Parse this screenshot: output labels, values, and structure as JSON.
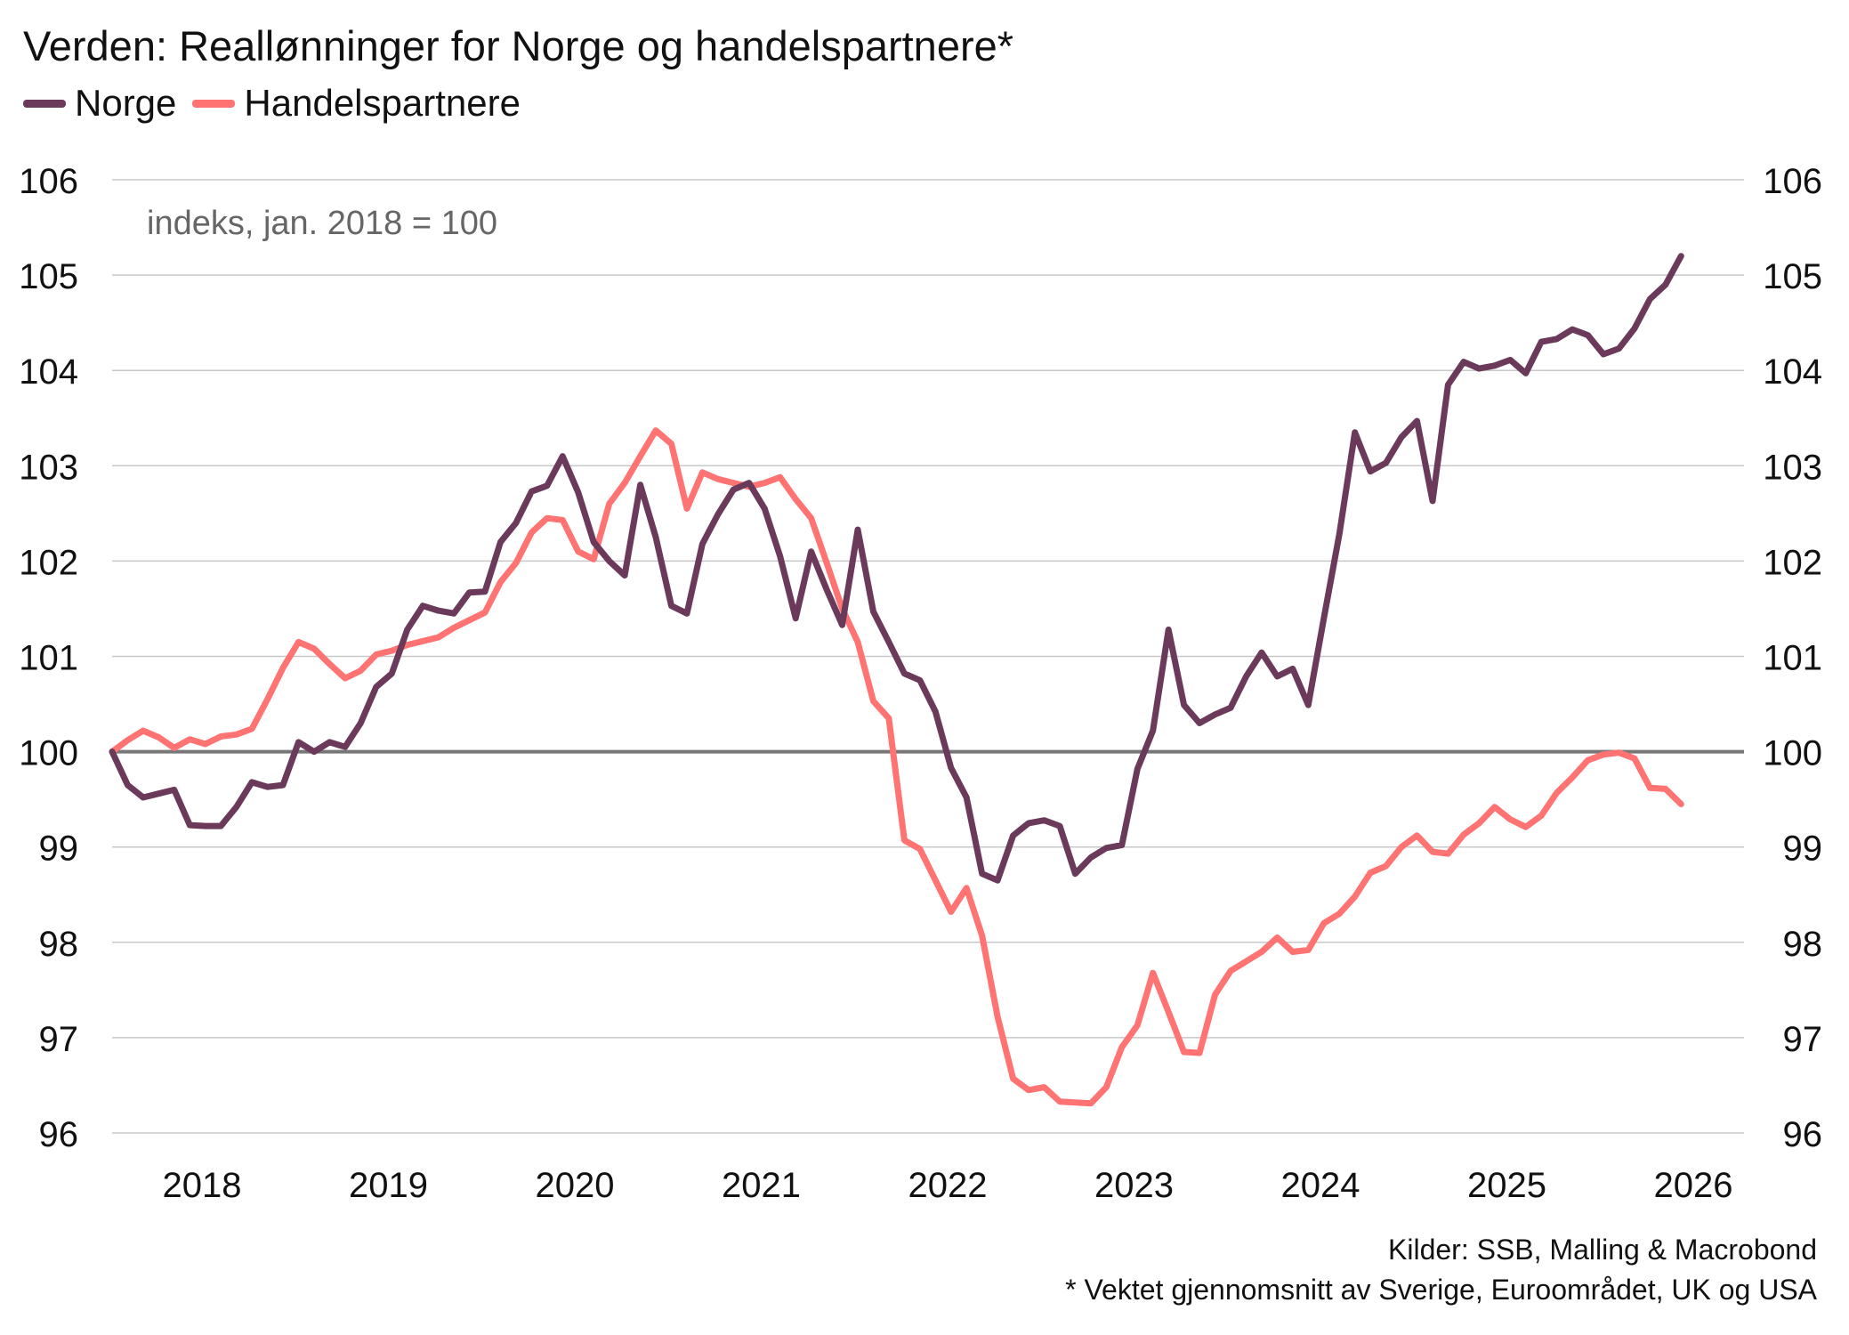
{
  "title": "Verden: Reallønninger for Norge og handelspartnere*",
  "legend": [
    {
      "label": "Norge",
      "color": "#6b3a5a"
    },
    {
      "label": "Handelspartnere",
      "color": "#ff7373"
    }
  ],
  "annotation": "indeks, jan. 2018 = 100",
  "sources": [
    "Kilder: SSB, Malling & Macrobond",
    "* Vektet gjennomsnitt av Sverige, Euroområdet, UK og USA"
  ],
  "chart_data": {
    "type": "line",
    "title": "Verden: Reallønninger for Norge og handelspartnere*",
    "subtitle": "indeks, jan. 2018 = 100",
    "xlabel": "",
    "ylabel": "",
    "x_start": "2018-01",
    "x_ticks": [
      "2018",
      "2019",
      "2020",
      "2021",
      "2022",
      "2023",
      "2024",
      "2025",
      "2026"
    ],
    "ylim": [
      96,
      106
    ],
    "y_ticks": [
      96,
      97,
      98,
      99,
      100,
      101,
      102,
      103,
      104,
      105,
      106
    ],
    "reference_line": 100,
    "grid": true,
    "axes": "left and right",
    "legend_position": "top-left",
    "series": [
      {
        "name": "Norge",
        "color": "#6b3a5a",
        "values": [
          100.0,
          99.65,
          99.52,
          99.56,
          99.6,
          99.23,
          99.22,
          99.22,
          99.42,
          99.68,
          99.63,
          99.65,
          100.1,
          100.0,
          100.1,
          100.05,
          100.3,
          100.68,
          100.82,
          101.28,
          101.53,
          101.48,
          101.45,
          101.67,
          101.68,
          102.2,
          102.4,
          102.73,
          102.79,
          103.1,
          102.72,
          102.2,
          102.0,
          101.85,
          102.8,
          102.25,
          101.53,
          101.45,
          102.18,
          102.49,
          102.75,
          102.82,
          102.55,
          102.05,
          101.4,
          102.1,
          101.7,
          101.33,
          102.33,
          101.47,
          101.15,
          100.82,
          100.75,
          100.42,
          99.83,
          99.52,
          98.72,
          98.65,
          99.12,
          99.25,
          99.28,
          99.22,
          98.72,
          98.89,
          98.99,
          99.02,
          99.82,
          100.22,
          101.28,
          100.49,
          100.3,
          100.39,
          100.46,
          100.79,
          101.04,
          100.79,
          100.87,
          100.49,
          101.4,
          102.28,
          103.35,
          102.94,
          103.03,
          103.3,
          103.47,
          102.63,
          103.85,
          104.09,
          104.02,
          104.05,
          104.11,
          103.97,
          104.3,
          104.33,
          104.43,
          104.37,
          104.17,
          104.23,
          104.44,
          104.75,
          104.9,
          105.2
        ]
      },
      {
        "name": "Handelspartnere",
        "color": "#ff7373",
        "values": [
          100.0,
          100.12,
          100.22,
          100.15,
          100.04,
          100.13,
          100.08,
          100.16,
          100.18,
          100.24,
          100.55,
          100.88,
          101.15,
          101.08,
          100.92,
          100.77,
          100.85,
          101.02,
          101.06,
          101.12,
          101.16,
          101.2,
          101.3,
          101.38,
          101.46,
          101.78,
          101.98,
          102.3,
          102.45,
          102.43,
          102.1,
          102.02,
          102.6,
          102.82,
          103.1,
          103.37,
          103.23,
          102.55,
          102.93,
          102.86,
          102.82,
          102.78,
          102.82,
          102.88,
          102.65,
          102.45,
          101.98,
          101.5,
          101.15,
          100.53,
          100.35,
          99.07,
          98.98,
          98.65,
          98.32,
          98.57,
          98.07,
          97.22,
          96.57,
          96.45,
          96.48,
          96.33,
          96.32,
          96.31,
          96.48,
          96.9,
          97.13,
          97.68,
          97.27,
          96.85,
          96.84,
          97.45,
          97.7,
          97.8,
          97.9,
          98.05,
          97.9,
          97.92,
          98.2,
          98.3,
          98.48,
          98.73,
          98.8,
          99.0,
          99.12,
          98.95,
          98.93,
          99.13,
          99.25,
          99.42,
          99.29,
          99.21,
          99.33,
          99.57,
          99.73,
          99.91,
          99.97,
          99.99,
          99.93,
          99.62,
          99.61,
          99.45
        ]
      }
    ]
  }
}
